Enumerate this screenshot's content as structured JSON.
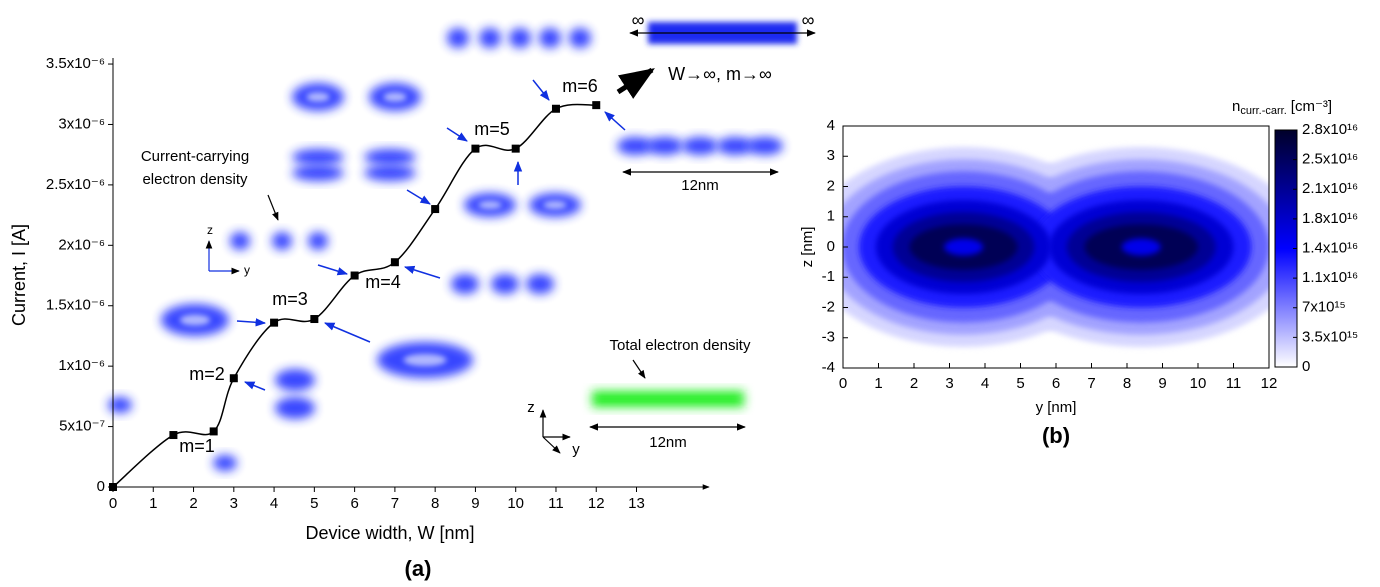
{
  "chart_data": [
    {
      "type": "line",
      "title": "(a)",
      "x_label": "Device width, W [nm]",
      "y_label": "Current, I [A]",
      "x": [
        0,
        1.5,
        2.5,
        3,
        4,
        5,
        6,
        7,
        8,
        9,
        10,
        11,
        12
      ],
      "series": [
        {
          "color": "#000000",
          "values": [
            0,
            4.3e-07,
            4.6e-07,
            9e-07,
            1.36e-06,
            1.39e-06,
            1.75e-06,
            1.86e-06,
            2.3e-06,
            2.8e-06,
            2.8e-06,
            3.13e-06,
            3.16e-06
          ]
        }
      ],
      "markers": true,
      "xlim": [
        0,
        14.8
      ],
      "ylim": [
        0,
        3.55e-06
      ],
      "xticks": [
        0,
        1,
        2,
        3,
        4,
        5,
        6,
        7,
        8,
        9,
        10,
        11,
        12,
        13
      ],
      "yticks": [
        0,
        {
          "value": 5e-07,
          "label": "5x10⁻⁷"
        },
        {
          "value": 1e-06,
          "label": "1x10⁻⁶"
        },
        {
          "value": 1.5e-06,
          "label": "1.5x10⁻⁶"
        },
        {
          "value": 2e-06,
          "label": "2x10⁻⁶"
        },
        {
          "value": 2.5e-06,
          "label": "2.5x10⁻⁶"
        },
        {
          "value": 3e-06,
          "label": "3x10⁻⁶"
        },
        {
          "value": 3.5e-06,
          "label": "3.5x10⁻⁶"
        }
      ],
      "annotations": [
        "m=1",
        "m=2",
        "m=3",
        "m=4",
        "m=5",
        "m=6",
        "Current-carrying",
        "electron density",
        "Total electron density",
        "12nm",
        "12nm",
        "W→∞, m→∞",
        "∞",
        "∞",
        "z",
        "y",
        "z",
        "y"
      ]
    },
    {
      "type": "heatmap",
      "title": "(b)",
      "x_label": "y [nm]",
      "y_label": "z [nm]",
      "xlim": [
        0,
        12
      ],
      "ylim": [
        -4,
        4
      ],
      "xticks": [
        0,
        1,
        2,
        3,
        4,
        5,
        6,
        7,
        8,
        9,
        10,
        11,
        12
      ],
      "yticks": [
        -4,
        -3,
        -2,
        -1,
        0,
        1,
        2,
        3,
        4
      ],
      "colormap": [
        "#ffffff",
        "#0000ff",
        "#00002a"
      ],
      "colorbar": {
        "label": "n",
        "label_sub": "curr.-carr.",
        "label_unit": "[cm⁻³]",
        "lim": [
          0,
          2.8e+16
        ],
        "ticks": [
          0,
          {
            "value": 3500000000000000.0,
            "label": "3.5x10¹⁵"
          },
          {
            "value": 7000000000000000.0,
            "label": "7x10¹⁵"
          },
          {
            "value": 1.05e+16,
            "label": "1.1x10¹⁶"
          },
          {
            "value": 1.4e+16,
            "label": "1.4x10¹⁶"
          },
          {
            "value": 1.75e+16,
            "label": "1.8x10¹⁶"
          },
          {
            "value": 2.1e+16,
            "label": "2.1x10¹⁶"
          },
          {
            "value": 2.45e+16,
            "label": "2.5x10¹⁶"
          },
          {
            "value": 2.8e+16,
            "label": "2.8x10¹⁶"
          }
        ]
      }
    }
  ]
}
